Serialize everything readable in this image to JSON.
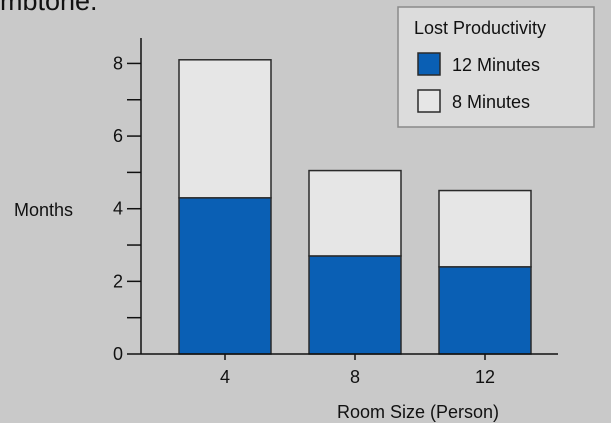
{
  "top_fragment": "mbtone.",
  "chart_data": {
    "type": "bar",
    "stacked": true,
    "categories": [
      "4",
      "8",
      "12"
    ],
    "series": [
      {
        "name": "12 Minutes",
        "color": "#0a5fb4",
        "values": [
          4.3,
          2.7,
          2.4
        ]
      },
      {
        "name": "8 Minutes",
        "color": "#e6e6e6",
        "values": [
          3.8,
          2.35,
          2.1
        ]
      }
    ],
    "title": "",
    "xlabel": "Room Size (Person)",
    "ylabel": "Months",
    "ylim": [
      0,
      8.7
    ],
    "yticks": [
      0,
      2,
      4,
      6,
      8
    ],
    "grid": false,
    "legend": {
      "title": "Lost Productivity",
      "placement": "top-right"
    }
  }
}
